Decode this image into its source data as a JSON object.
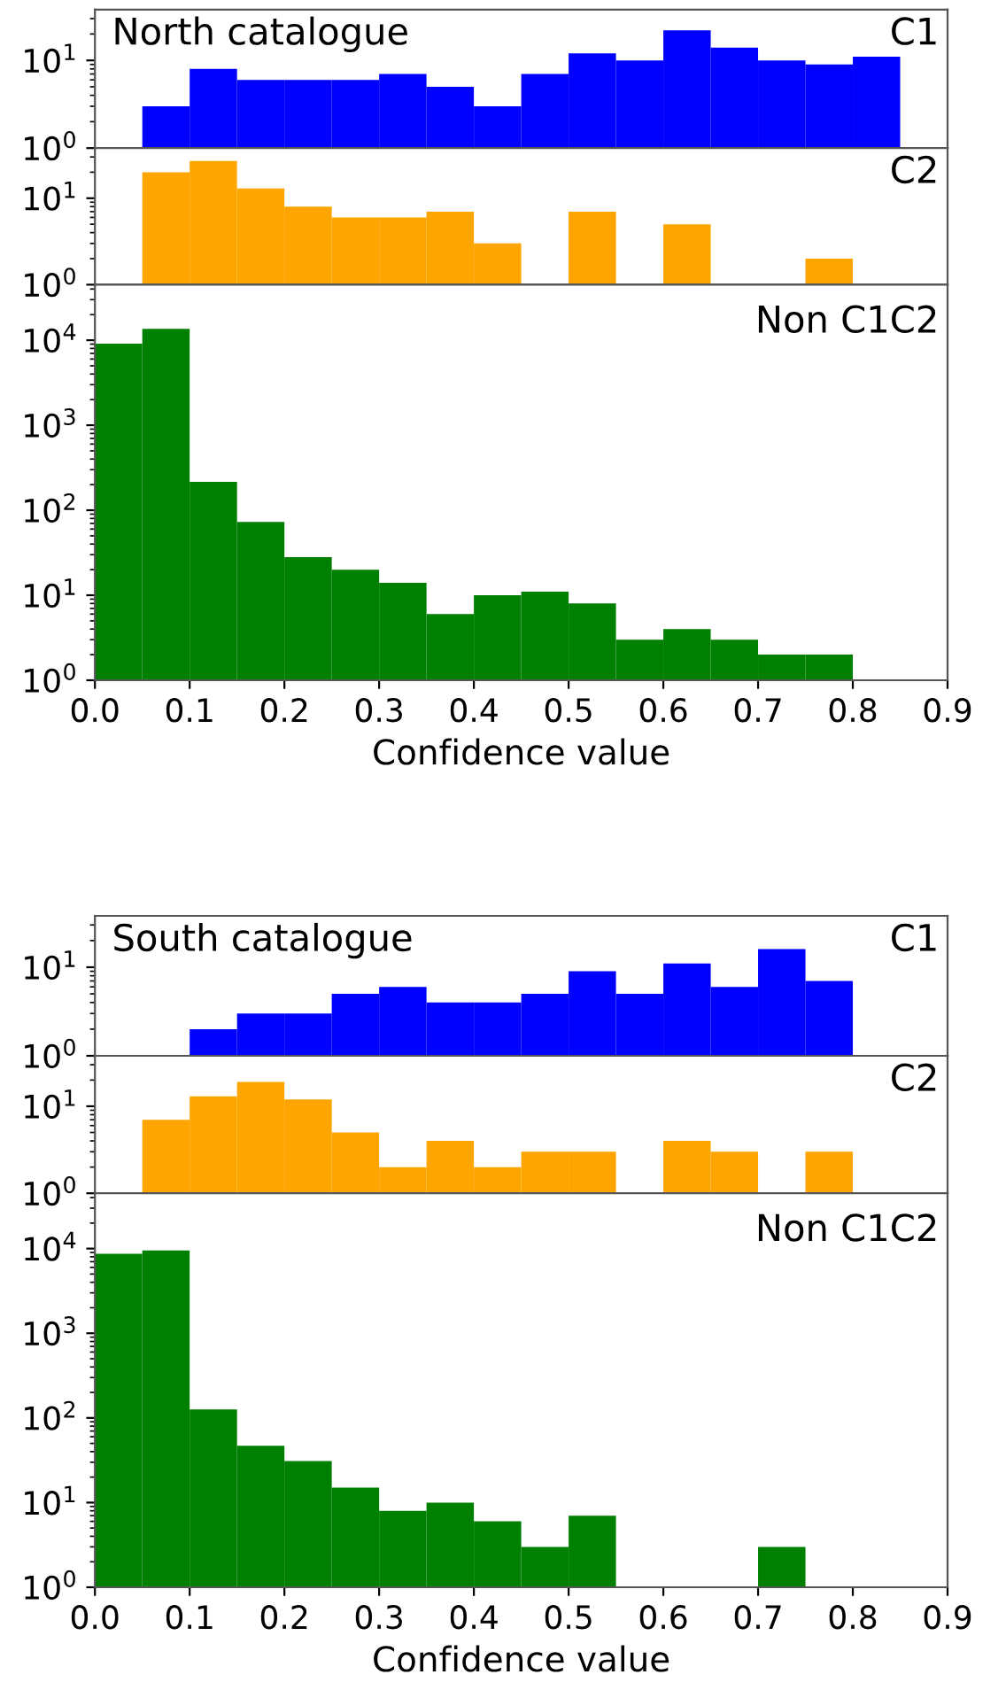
{
  "chart_data": [
    {
      "type": "histogram",
      "title": "North catalogue",
      "annotations": [
        "C1"
      ],
      "color": "#0000ff",
      "log": true,
      "tick_labels": "y",
      "bins": [
        0,
        0.05,
        0.1,
        0.15,
        0.2,
        0.25,
        0.3,
        0.35,
        0.4,
        0.45,
        0.5,
        0.55,
        0.6,
        0.65,
        0.7,
        0.75,
        0.8,
        0.85,
        0.9
      ],
      "values": [
        null,
        3,
        8,
        6,
        6,
        6,
        7,
        5,
        3,
        7,
        12,
        10,
        22,
        14,
        10,
        9,
        11,
        null
      ],
      "xlim": [
        0,
        0.9
      ],
      "ylim": [
        1,
        38
      ],
      "yticks": [
        {
          "value": 1,
          "label": "10$^{0}$"
        },
        {
          "value": 10,
          "label": "10$^{1}$"
        }
      ]
    },
    {
      "type": "histogram",
      "annotations": [
        "C2"
      ],
      "color": "#ffa500",
      "log": true,
      "tick_labels": "y",
      "bins": [
        0,
        0.05,
        0.1,
        0.15,
        0.2,
        0.25,
        0.3,
        0.35,
        0.4,
        0.45,
        0.5,
        0.55,
        0.6,
        0.65,
        0.7,
        0.75,
        0.8,
        0.85,
        0.9
      ],
      "values": [
        null,
        20,
        27,
        13,
        8,
        6,
        6,
        7,
        3,
        1,
        7,
        1,
        5,
        null,
        1,
        2,
        null,
        null
      ],
      "xlim": [
        0,
        0.9
      ],
      "ylim": [
        1,
        38
      ],
      "yticks": [
        {
          "value": 1,
          "label": "10$^{0}$"
        },
        {
          "value": 10,
          "label": "10$^{1}$"
        }
      ]
    },
    {
      "type": "histogram",
      "annotations": [
        "Non C1C2"
      ],
      "color": "#008000",
      "log": true,
      "xlabel": "Confidence value",
      "bins": [
        0,
        0.05,
        0.1,
        0.15,
        0.2,
        0.25,
        0.3,
        0.35,
        0.4,
        0.45,
        0.5,
        0.55,
        0.6,
        0.65,
        0.7,
        0.75,
        0.8,
        0.85,
        0.9
      ],
      "values": [
        9100,
        13600,
        216,
        73,
        28,
        20,
        14,
        6,
        10,
        11,
        8,
        3,
        4,
        3,
        2,
        2,
        null,
        null
      ],
      "xlim": [
        0,
        0.9
      ],
      "xticks": [
        {
          "value": 0,
          "label": "0.0"
        },
        0.1,
        0.2,
        0.3,
        0.4,
        0.5,
        0.6,
        0.7,
        0.8,
        0.9
      ],
      "ylim": [
        1,
        45000
      ],
      "yticks": [
        {
          "value": 1,
          "label": "10$^{0}$"
        },
        {
          "value": 10,
          "label": "10$^{1}$"
        },
        {
          "value": 100,
          "label": "10$^{2}$"
        },
        {
          "value": 1000,
          "label": "10$^{3}$"
        },
        {
          "value": 10000,
          "label": "10$^{4}$"
        }
      ]
    },
    {
      "type": "histogram",
      "title": "South catalogue",
      "annotations": [
        "C1"
      ],
      "color": "#0000ff",
      "log": true,
      "tick_labels": "y",
      "bins": [
        0,
        0.05,
        0.1,
        0.15,
        0.2,
        0.25,
        0.3,
        0.35,
        0.4,
        0.45,
        0.5,
        0.55,
        0.6,
        0.65,
        0.7,
        0.75,
        0.8,
        0.85,
        0.9
      ],
      "values": [
        null,
        null,
        2,
        3,
        3,
        5,
        6,
        4,
        4,
        5,
        9,
        5,
        11,
        6,
        16,
        7,
        null,
        null
      ],
      "xlim": [
        0,
        0.9
      ],
      "ylim": [
        1,
        38
      ],
      "yticks": [
        {
          "value": 1,
          "label": "10$^{0}$"
        },
        {
          "value": 10,
          "label": "10$^{1}$"
        }
      ]
    },
    {
      "type": "histogram",
      "annotations": [
        "C2"
      ],
      "color": "#ffa500",
      "log": true,
      "tick_labels": "y",
      "bins": [
        0,
        0.05,
        0.1,
        0.15,
        0.2,
        0.25,
        0.3,
        0.35,
        0.4,
        0.45,
        0.5,
        0.55,
        0.6,
        0.65,
        0.7,
        0.75,
        0.8,
        0.85,
        0.9
      ],
      "values": [
        null,
        7,
        13,
        19,
        12,
        5,
        2,
        4,
        2,
        3,
        3,
        null,
        4,
        3,
        1,
        3,
        null,
        null
      ],
      "xlim": [
        0,
        0.9
      ],
      "ylim": [
        1,
        38
      ],
      "yticks": [
        {
          "value": 1,
          "label": "10$^{0}$"
        },
        {
          "value": 10,
          "label": "10$^{1}$"
        }
      ]
    },
    {
      "type": "histogram",
      "annotations": [
        "Non C1C2"
      ],
      "color": "#008000",
      "log": true,
      "xlabel": "Confidence value",
      "bins": [
        0,
        0.05,
        0.1,
        0.15,
        0.2,
        0.25,
        0.3,
        0.35,
        0.4,
        0.45,
        0.5,
        0.55,
        0.6,
        0.65,
        0.7,
        0.75,
        0.8,
        0.85,
        0.9
      ],
      "values": [
        8700,
        9500,
        126,
        47,
        31,
        15,
        8,
        10,
        6,
        3,
        7,
        1,
        1,
        1,
        3,
        null,
        null,
        null
      ],
      "xlim": [
        0,
        0.9
      ],
      "xticks": [
        {
          "value": 0,
          "label": "0.0"
        },
        0.1,
        0.2,
        0.3,
        0.4,
        0.5,
        0.6,
        0.7,
        0.8,
        0.9
      ],
      "ylim": [
        1,
        45000
      ],
      "yticks": [
        {
          "value": 1,
          "label": "10$^{0}$"
        },
        {
          "value": 10,
          "label": "10$^{1}$"
        },
        {
          "value": 100,
          "label": "10$^{2}$"
        },
        {
          "value": 1000,
          "label": "10$^{3}$"
        },
        {
          "value": 10000,
          "label": "10$^{4}$"
        }
      ]
    }
  ]
}
